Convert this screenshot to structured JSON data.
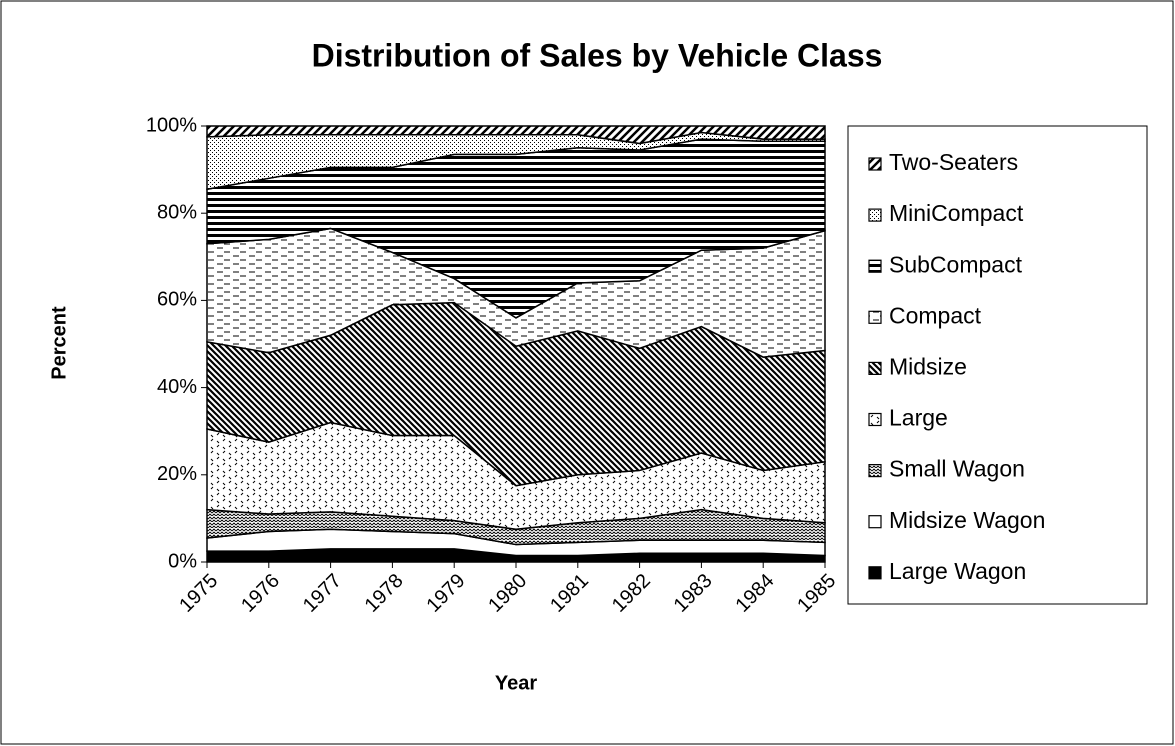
{
  "chart_data": {
    "type": "stacked_area",
    "title": "Distribution of Sales by Vehicle Class",
    "xlabel": "Year",
    "ylabel": "Percent",
    "categories": [
      "1975",
      "1976",
      "1977",
      "1978",
      "1979",
      "1980",
      "1981",
      "1982",
      "1983",
      "1984",
      "1985"
    ],
    "ylim": [
      0,
      100
    ],
    "yticks": [
      {
        "value": 0,
        "label": "0%"
      },
      {
        "value": 20,
        "label": "20%"
      },
      {
        "value": 40,
        "label": "40%"
      },
      {
        "value": 60,
        "label": "60%"
      },
      {
        "value": 80,
        "label": "80%"
      },
      {
        "value": 100,
        "label": "100%"
      }
    ],
    "legend": "right",
    "series": [
      {
        "name": "Large Wagon",
        "color": "#000000",
        "pattern": "solid",
        "values": [
          2.5,
          2.5,
          3,
          3,
          3,
          1.5,
          1.5,
          2,
          2,
          2,
          1.5
        ]
      },
      {
        "name": "Midsize Wagon",
        "color": "#000000",
        "pattern": "none",
        "values": [
          3,
          4.5,
          4.5,
          4,
          3.5,
          2.5,
          3,
          3,
          3,
          3,
          3
        ]
      },
      {
        "name": "Small Wagon",
        "color": "#000000",
        "pattern": "zigzag",
        "values": [
          6.5,
          4,
          4,
          3.5,
          3,
          3.5,
          4.5,
          5,
          7,
          5,
          4.5
        ]
      },
      {
        "name": "Large",
        "color": "#000000",
        "pattern": "dashed-diagonal",
        "values": [
          18.5,
          16.5,
          20.5,
          18.5,
          19.5,
          10,
          11,
          11,
          13,
          11,
          14
        ]
      },
      {
        "name": "Midsize",
        "color": "#000000",
        "pattern": "diagonal-down",
        "values": [
          20,
          20.5,
          20,
          30,
          30.5,
          32,
          33,
          28,
          29,
          26,
          25.5
        ]
      },
      {
        "name": "Compact",
        "color": "#000000",
        "pattern": "dashes",
        "values": [
          22.5,
          26,
          24.5,
          12,
          5.5,
          6.5,
          11,
          15.5,
          17.5,
          25,
          27.5
        ]
      },
      {
        "name": "SubCompact",
        "color": "#000000",
        "pattern": "horizontal",
        "values": [
          12.5,
          14,
          14,
          19.5,
          28.5,
          37.5,
          31,
          30,
          25.5,
          24.5,
          20.5
        ]
      },
      {
        "name": "MiniCompact",
        "color": "#000000",
        "pattern": "dots",
        "values": [
          12,
          10,
          7.5,
          7.5,
          4.5,
          4.5,
          3,
          1.5,
          1.5,
          0.5,
          0.5
        ]
      },
      {
        "name": "Two-Seaters",
        "color": "#000000",
        "pattern": "diagonal-up",
        "values": [
          2.5,
          2,
          2,
          2,
          2,
          2,
          2,
          4,
          1.5,
          3,
          3
        ]
      }
    ]
  }
}
